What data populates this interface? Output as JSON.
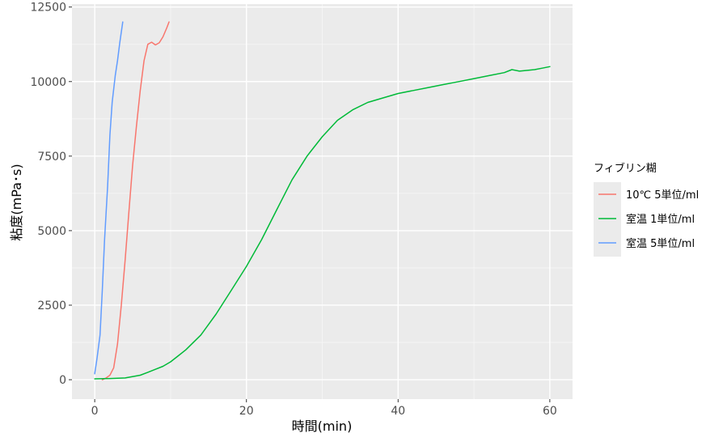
{
  "chart_data": {
    "type": "line",
    "title": "",
    "xlabel": "時間(min)",
    "ylabel": "粘度(mPa･s)",
    "xlim": [
      -3,
      63
    ],
    "ylim": [
      -650,
      12600
    ],
    "x_ticks": [
      0,
      20,
      40,
      60
    ],
    "y_ticks": [
      0,
      2500,
      5000,
      7500,
      10000,
      12500
    ],
    "grid": true,
    "legend": {
      "title": "フィブリン糊",
      "position": "right"
    },
    "series": [
      {
        "name": "10℃ 5単位/ml",
        "color": "#F8766D",
        "x": [
          1.0,
          1.5,
          2.0,
          2.5,
          3.0,
          3.5,
          4.0,
          4.5,
          5.0,
          5.5,
          6.0,
          6.5,
          7.0,
          7.5,
          8.0,
          8.5,
          9.0,
          9.5,
          9.8
        ],
        "y": [
          0,
          60,
          150,
          400,
          1200,
          2500,
          4000,
          5600,
          7200,
          8500,
          9700,
          10700,
          11250,
          11320,
          11230,
          11300,
          11500,
          11800,
          12000
        ]
      },
      {
        "name": "室温 1単位/ml",
        "color": "#00BA38",
        "x": [
          0,
          2,
          4,
          6,
          7,
          8,
          9,
          10,
          11,
          12,
          14,
          16,
          18,
          20,
          22,
          24,
          26,
          28,
          30,
          32,
          34,
          36,
          38,
          40,
          42,
          44,
          46,
          48,
          50,
          52,
          54,
          55,
          56,
          58,
          59,
          60
        ],
        "y": [
          30,
          40,
          60,
          150,
          250,
          350,
          450,
          600,
          800,
          1000,
          1500,
          2200,
          3000,
          3800,
          4700,
          5700,
          6700,
          7500,
          8150,
          8700,
          9050,
          9300,
          9450,
          9600,
          9700,
          9800,
          9900,
          10000,
          10100,
          10200,
          10300,
          10400,
          10350,
          10400,
          10450,
          10500
        ]
      },
      {
        "name": "室温 5単位/ml",
        "color": "#619CFF",
        "x": [
          0.0,
          0.3,
          0.7,
          1.0,
          1.3,
          1.7,
          2.0,
          2.3,
          2.7,
          3.0,
          3.3,
          3.7
        ],
        "y": [
          200,
          700,
          1500,
          3000,
          4700,
          6500,
          8200,
          9300,
          10200,
          10700,
          11300,
          12000
        ]
      }
    ]
  }
}
